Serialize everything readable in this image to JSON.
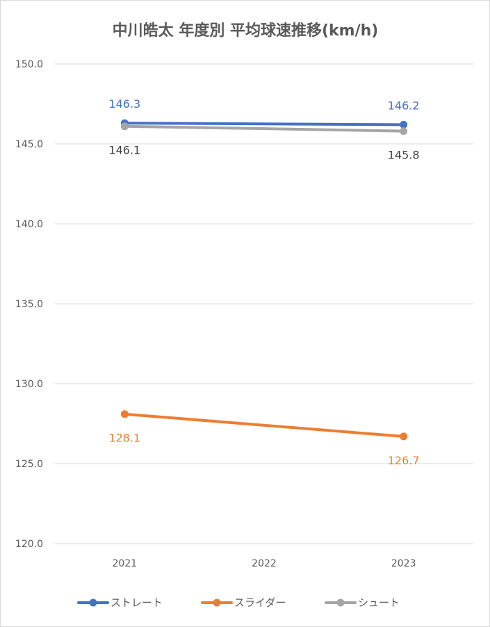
{
  "chart_data": {
    "type": "line",
    "title": "中川皓太 年度別 平均球速推移(km/h)",
    "xlabel": "",
    "ylabel": "",
    "categories": [
      "2021",
      "2022",
      "2023"
    ],
    "x_label_categories": [
      "2021",
      "2023"
    ],
    "ylim": [
      120,
      150
    ],
    "yticks": [
      120,
      125,
      130,
      135,
      140,
      145,
      150
    ],
    "ytick_labels": [
      "120.0",
      "125.0",
      "130.0",
      "135.0",
      "140.0",
      "145.0",
      "150.0"
    ],
    "grid": true,
    "legend_position": "bottom",
    "series": [
      {
        "name": "ストレート",
        "color": "#4472c4",
        "x": [
          "2021",
          "2023"
        ],
        "values": [
          146.3,
          146.2
        ],
        "data_labels": [
          "146.3",
          "146.2"
        ],
        "label_position": "above"
      },
      {
        "name": "スライダー",
        "color": "#ed7d31",
        "x": [
          "2021",
          "2023"
        ],
        "values": [
          128.1,
          126.7
        ],
        "data_labels": [
          "128.1",
          "126.7"
        ],
        "label_position": "below"
      },
      {
        "name": "シュート",
        "color": "#a5a5a5",
        "x": [
          "2021",
          "2023"
        ],
        "values": [
          146.1,
          145.8
        ],
        "data_labels": [
          "146.1",
          "145.8"
        ],
        "label_position": "below",
        "label_color": "#404040"
      }
    ]
  }
}
